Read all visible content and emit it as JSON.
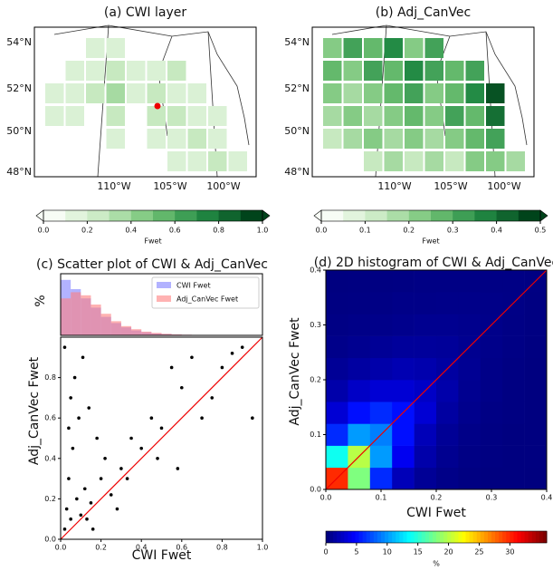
{
  "chart_data": [
    {
      "type": "map",
      "title": "(a) CWI layer",
      "lat_labels": [
        "54°N",
        "52°N",
        "50°N",
        "48°N"
      ],
      "lon_labels": [
        "110°W",
        "105°W",
        "100°W"
      ],
      "grid": [
        [
          null,
          null,
          0.1,
          0.15,
          null,
          null,
          null,
          null,
          null,
          null
        ],
        [
          null,
          0.1,
          0.15,
          0.2,
          0.1,
          0.15,
          0.2,
          null,
          null,
          null
        ],
        [
          0.1,
          0.15,
          0.2,
          0.3,
          0.1,
          0.2,
          0.15,
          0.1,
          null,
          null
        ],
        [
          0.15,
          0.1,
          null,
          0.2,
          null,
          0.25,
          0.2,
          0.1,
          0.15,
          null
        ],
        [
          null,
          null,
          null,
          0.1,
          null,
          0.15,
          0.1,
          0.2,
          0.15,
          null
        ],
        [
          null,
          null,
          null,
          null,
          null,
          null,
          0.1,
          0.15,
          0.2,
          0.1
        ]
      ],
      "colorbar": {
        "label": "Fwet",
        "lim": [
          0,
          1
        ],
        "levels": 10,
        "ticks": [
          {
            "value": 0,
            "label": "0.0"
          },
          0.2,
          0.4,
          0.6,
          0.8,
          {
            "value": 1,
            "label": "1.0"
          }
        ]
      }
    },
    {
      "type": "map",
      "title": "(b) Adj_CanVec",
      "lat_labels": [
        "54°N",
        "52°N",
        "50°N",
        "48°N"
      ],
      "lon_labels": [
        "110°W",
        "105°W",
        "100°W"
      ],
      "grid": [
        [
          0.2,
          0.3,
          0.25,
          0.35,
          0.2,
          0.3,
          null,
          null,
          null,
          null
        ],
        [
          0.25,
          0.2,
          0.3,
          0.25,
          0.35,
          0.3,
          0.25,
          0.3,
          null,
          null
        ],
        [
          0.2,
          0.15,
          0.2,
          0.25,
          0.3,
          0.2,
          0.25,
          0.35,
          0.45,
          null
        ],
        [
          0.15,
          0.2,
          0.15,
          0.2,
          0.25,
          0.2,
          0.3,
          0.25,
          0.4,
          null
        ],
        [
          0.1,
          0.15,
          0.2,
          0.15,
          0.2,
          0.15,
          0.2,
          0.25,
          0.3,
          null
        ],
        [
          null,
          null,
          0.1,
          0.15,
          0.1,
          0.15,
          0.1,
          0.2,
          0.2,
          0.15
        ]
      ],
      "colorbar": {
        "label": "Fwet",
        "lim": [
          0,
          0.5
        ],
        "levels": 10,
        "ticks": [
          {
            "value": 0,
            "label": "0.0"
          },
          0.1,
          0.2,
          0.3,
          0.4,
          0.5
        ]
      }
    },
    {
      "type": "scatter",
      "title": "(c) Scatter plot of CWI & Adj_CanVec",
      "xlabel": "CWI Fwet",
      "ylabel": "Adj_CanVec Fwet",
      "x": [
        0.02,
        0.03,
        0.05,
        0.04,
        0.08,
        0.1,
        0.06,
        0.12,
        0.15,
        0.09,
        0.2,
        0.18,
        0.25,
        0.22,
        0.3,
        0.05,
        0.07,
        0.11,
        0.14,
        0.35,
        0.4,
        0.45,
        0.5,
        0.55,
        0.6,
        0.65,
        0.7,
        0.75,
        0.8,
        0.85,
        0.9,
        0.95,
        0.02,
        0.04,
        0.13,
        0.28,
        0.33,
        0.48,
        0.58,
        0.16
      ],
      "y": [
        0.05,
        0.15,
        0.1,
        0.3,
        0.2,
        0.12,
        0.45,
        0.25,
        0.18,
        0.6,
        0.3,
        0.5,
        0.22,
        0.4,
        0.35,
        0.7,
        0.8,
        0.9,
        0.65,
        0.5,
        0.45,
        0.6,
        0.55,
        0.85,
        0.75,
        0.9,
        0.6,
        0.7,
        0.85,
        0.92,
        0.95,
        0.6,
        0.95,
        0.55,
        0.1,
        0.15,
        0.3,
        0.4,
        0.35,
        0.05
      ],
      "xlim": [
        0,
        1
      ],
      "ylim": [
        0,
        1
      ],
      "xticks": [
        {
          "value": 0,
          "label": "0.0"
        },
        0.2,
        0.4,
        0.6,
        0.8,
        {
          "value": 1,
          "label": "1.0"
        }
      ],
      "yticks": [
        {
          "value": 0,
          "label": "0.0"
        },
        0.2,
        0.4,
        0.6,
        0.8
      ],
      "histogram": {
        "ylabel": "%",
        "ylim": [
          0,
          10
        ],
        "legend": "upper right",
        "bins": [
          0,
          0.05,
          0.1,
          0.15,
          0.2,
          0.25,
          0.3,
          0.35,
          0.4,
          0.45,
          0.5,
          0.55,
          0.6,
          0.65,
          0.7,
          0.75,
          0.8,
          0.85,
          0.9,
          0.95,
          1
        ],
        "series": [
          {
            "name": "CWI Fwet",
            "color": "#7f7fff",
            "values": [
              9,
              7.5,
              6,
              4.5,
              3,
              2,
              1.3,
              0.8,
              0.5,
              0.3,
              0.2,
              0.12,
              0.08,
              0.05,
              0.03,
              0.02,
              0.01,
              0.01,
              0.01,
              0.01
            ]
          },
          {
            "name": "Adj_CanVec Fwet",
            "color": "#ff7f7f",
            "values": [
              6,
              7,
              6.5,
              5,
              3.5,
              2.3,
              1.5,
              1,
              0.6,
              0.4,
              0.25,
              0.15,
              0.1,
              0.06,
              0.04,
              0.03,
              0.02,
              0.01,
              0.01,
              0.01
            ]
          }
        ]
      }
    },
    {
      "type": "heatmap",
      "title": "(d) 2D histogram of CWI & Adj_CanVec",
      "xlabel": "CWI Fwet",
      "ylabel": "Adj_CanVec Fwet",
      "xlim": [
        0,
        0.4
      ],
      "ylim": [
        0,
        0.4
      ],
      "xticks": [
        {
          "value": 0,
          "label": "0.0"
        },
        0.1,
        0.2,
        0.3,
        0.4
      ],
      "yticks": [
        {
          "value": 0,
          "label": "0.0"
        },
        0.1,
        0.2,
        0.3,
        0.4
      ],
      "values": [
        [
          30,
          18,
          6,
          2,
          0.8,
          0.3,
          0.1,
          0.05,
          0.02,
          0.01
        ],
        [
          14,
          20,
          10,
          4,
          1.5,
          0.6,
          0.2,
          0.1,
          0.05,
          0.02
        ],
        [
          6,
          10,
          9,
          5,
          2,
          0.8,
          0.3,
          0.15,
          0.05,
          0.02
        ],
        [
          3,
          5,
          6,
          5,
          3,
          1.2,
          0.5,
          0.2,
          0.1,
          0.03
        ],
        [
          1.5,
          2.5,
          3,
          3,
          2.5,
          1.5,
          0.6,
          0.3,
          0.1,
          0.05
        ],
        [
          0.8,
          1.2,
          1.5,
          1.8,
          1.6,
          1.2,
          0.7,
          0.3,
          0.15,
          0.05
        ],
        [
          0.4,
          0.6,
          0.8,
          1,
          1,
          0.9,
          0.6,
          0.4,
          0.2,
          0.08
        ],
        [
          0.2,
          0.3,
          0.4,
          0.5,
          0.6,
          0.6,
          0.5,
          0.4,
          0.2,
          0.1
        ],
        [
          0.1,
          0.15,
          0.2,
          0.3,
          0.3,
          0.35,
          0.35,
          0.3,
          0.25,
          0.1
        ],
        [
          0.05,
          0.08,
          0.1,
          0.15,
          0.2,
          0.2,
          0.2,
          0.2,
          0.2,
          0.15
        ]
      ],
      "colorbar": {
        "label": "%",
        "lim": [
          0,
          36
        ],
        "ticks": [
          0,
          5,
          10,
          15,
          20,
          25,
          30
        ]
      }
    }
  ]
}
